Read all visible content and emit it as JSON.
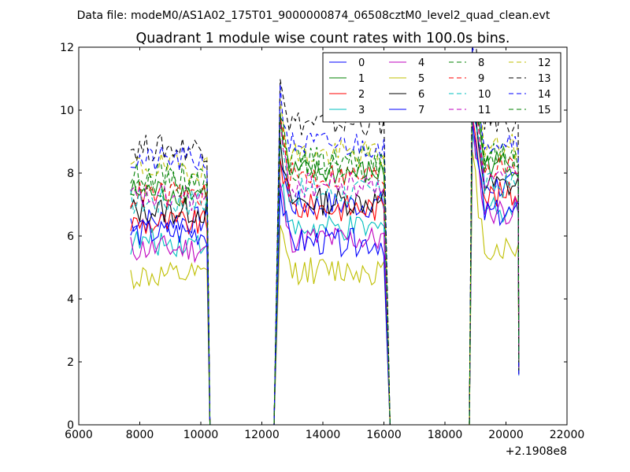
{
  "chart_data": {
    "type": "line",
    "suptitle": "Data file: modeM0/AS1A02_175T01_9000000874_06508cztM0_level2_quad_clean.evt",
    "title": "Quadrant 1 module wise count rates with 100.0s bins.",
    "xlabel": "",
    "ylabel": "",
    "x_offset_label": "+2.1908e8",
    "xlim": [
      6000,
      22000
    ],
    "ylim": [
      0,
      12
    ],
    "xticks": [
      6000,
      8000,
      10000,
      12000,
      14000,
      16000,
      18000,
      20000,
      22000
    ],
    "xtick_labels": [
      "6000",
      "8000",
      "10000",
      "12000",
      "14000",
      "16000",
      "18000",
      "20000",
      "22000"
    ],
    "yticks": [
      0,
      2,
      4,
      6,
      8,
      10,
      12
    ],
    "ytick_labels": [
      "0",
      "2",
      "4",
      "6",
      "8",
      "10",
      "12"
    ],
    "grid": false,
    "legend_position": "top-right",
    "bin_width_s": 100,
    "segments": [
      {
        "start": 7700,
        "end": 10200
      },
      {
        "start": 12600,
        "end": 16000
      },
      {
        "start": 18900,
        "end": 20400
      }
    ],
    "gaps": [
      {
        "start": 10300,
        "end": 12400
      },
      {
        "start": 16200,
        "end": 18800
      }
    ],
    "series": [
      {
        "name": "0",
        "color": "#0000ff",
        "dash": "solid",
        "levels": [
          6.5,
          7.0,
          7.6
        ]
      },
      {
        "name": "1",
        "color": "#008000",
        "dash": "solid",
        "levels": [
          7.4,
          8.0,
          8.3
        ]
      },
      {
        "name": "2",
        "color": "#ff0000",
        "dash": "solid",
        "levels": [
          6.4,
          6.9,
          7.3
        ]
      },
      {
        "name": "3",
        "color": "#00bfbf",
        "dash": "solid",
        "levels": [
          5.8,
          6.2,
          6.9
        ]
      },
      {
        "name": "4",
        "color": "#bf00bf",
        "dash": "solid",
        "levels": [
          5.6,
          5.9,
          6.8
        ]
      },
      {
        "name": "5",
        "color": "#bfbf00",
        "dash": "solid",
        "levels": [
          4.7,
          4.9,
          5.6
        ]
      },
      {
        "name": "6",
        "color": "#000000",
        "dash": "solid",
        "levels": [
          6.8,
          7.1,
          7.6
        ]
      },
      {
        "name": "7",
        "color": "#0000ff",
        "dash": "solid",
        "levels": [
          6.1,
          5.8,
          6.7
        ]
      },
      {
        "name": "8",
        "color": "#008000",
        "dash": "dashed",
        "levels": [
          7.9,
          8.4,
          8.6
        ]
      },
      {
        "name": "9",
        "color": "#ff0000",
        "dash": "dashed",
        "levels": [
          7.3,
          7.9,
          8.2
        ]
      },
      {
        "name": "10",
        "color": "#00bfbf",
        "dash": "dashed",
        "levels": [
          7.1,
          7.4,
          7.6
        ]
      },
      {
        "name": "11",
        "color": "#bf00bf",
        "dash": "dashed",
        "levels": [
          7.2,
          7.6,
          7.8
        ]
      },
      {
        "name": "12",
        "color": "#bfbf00",
        "dash": "dashed",
        "levels": [
          8.2,
          8.6,
          8.8
        ]
      },
      {
        "name": "13",
        "color": "#000000",
        "dash": "dashed",
        "levels": [
          8.8,
          9.6,
          9.7
        ]
      },
      {
        "name": "14",
        "color": "#0000ff",
        "dash": "dashed",
        "levels": [
          8.4,
          8.9,
          9.1
        ]
      },
      {
        "name": "15",
        "color": "#008000",
        "dash": "dashed",
        "levels": [
          7.7,
          8.2,
          8.4
        ]
      }
    ]
  }
}
